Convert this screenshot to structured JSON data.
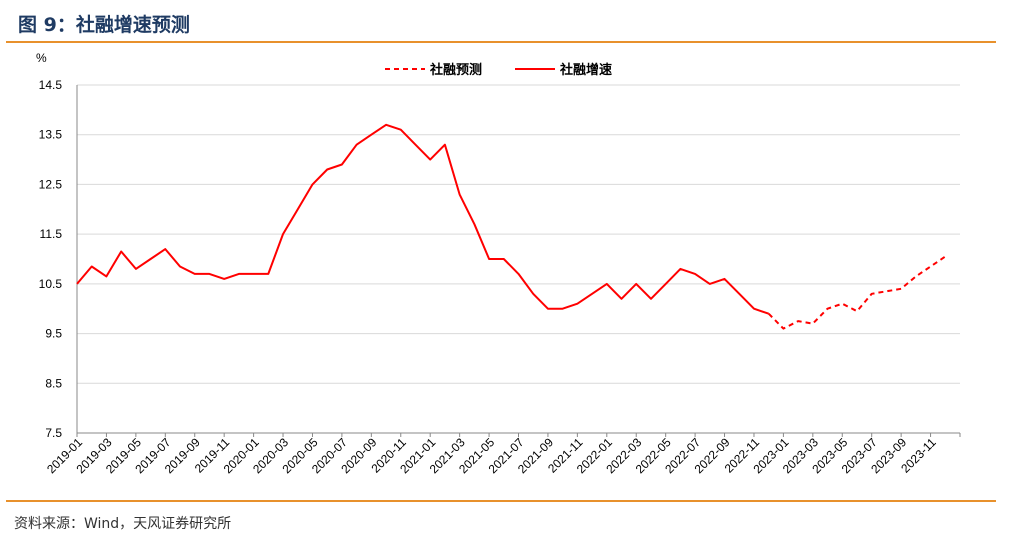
{
  "header": {
    "title": "图 9：社融增速预测"
  },
  "footer": {
    "source": "资料来源：Wind，天风证券研究所"
  },
  "colors": {
    "accent_rule": "#e8912c",
    "title": "#1f3b63",
    "series": "#ff0000",
    "grid": "#d9d9d9"
  },
  "chart_data": {
    "type": "line",
    "ylabel": "%",
    "ylim": [
      7.5,
      14.5
    ],
    "yticks": [
      "14.5",
      "13.5",
      "12.5",
      "11.5",
      "10.5",
      "9.5",
      "8.5",
      "7.5"
    ],
    "xtick_labels": [
      "2019-01",
      "2019-03",
      "2019-05",
      "2019-07",
      "2019-09",
      "2019-11",
      "2020-01",
      "2020-03",
      "2020-05",
      "2020-07",
      "2020-09",
      "2020-11",
      "2021-01",
      "2021-03",
      "2021-05",
      "2021-07",
      "2021-09",
      "2021-11",
      "2022-01",
      "2022-03",
      "2022-05",
      "2022-07",
      "2022-09",
      "2022-11",
      "2023-01",
      "2023-03",
      "2023-05",
      "2023-07",
      "2023-09",
      "2023-11"
    ],
    "grid": "horizontal",
    "legend_position": "top-center",
    "series": [
      {
        "name": "社融预测",
        "style": "dashed",
        "x": [
          "2022-12",
          "2023-01",
          "2023-02",
          "2023-03",
          "2023-04",
          "2023-05",
          "2023-06",
          "2023-07",
          "2023-08",
          "2023-09",
          "2023-10",
          "2023-11",
          "2023-12"
        ],
        "values": [
          9.9,
          9.6,
          9.75,
          9.7,
          10.0,
          10.1,
          9.95,
          10.3,
          10.35,
          10.4,
          10.65,
          10.85,
          11.05
        ]
      },
      {
        "name": "社融增速",
        "style": "solid",
        "x": [
          "2019-01",
          "2019-02",
          "2019-03",
          "2019-04",
          "2019-05",
          "2019-06",
          "2019-07",
          "2019-08",
          "2019-09",
          "2019-10",
          "2019-11",
          "2019-12",
          "2020-01",
          "2020-02",
          "2020-03",
          "2020-04",
          "2020-05",
          "2020-06",
          "2020-07",
          "2020-08",
          "2020-09",
          "2020-10",
          "2020-11",
          "2020-12",
          "2021-01",
          "2021-02",
          "2021-03",
          "2021-04",
          "2021-05",
          "2021-06",
          "2021-07",
          "2021-08",
          "2021-09",
          "2021-10",
          "2021-11",
          "2021-12",
          "2022-01",
          "2022-02",
          "2022-03",
          "2022-04",
          "2022-05",
          "2022-06",
          "2022-07",
          "2022-08",
          "2022-09",
          "2022-10",
          "2022-11",
          "2022-12"
        ],
        "values": [
          10.5,
          10.85,
          10.65,
          11.15,
          10.8,
          11.0,
          11.2,
          10.85,
          10.7,
          10.7,
          10.6,
          10.7,
          10.7,
          10.7,
          11.5,
          12.0,
          12.5,
          12.8,
          12.9,
          13.3,
          13.5,
          13.7,
          13.6,
          13.3,
          13.0,
          13.3,
          12.3,
          11.7,
          11.0,
          11.0,
          10.7,
          10.3,
          10.0,
          10.0,
          10.1,
          10.3,
          10.5,
          10.2,
          10.5,
          10.2,
          10.5,
          10.8,
          10.7,
          10.5,
          10.6,
          10.3,
          10.0,
          9.9
        ]
      }
    ]
  }
}
